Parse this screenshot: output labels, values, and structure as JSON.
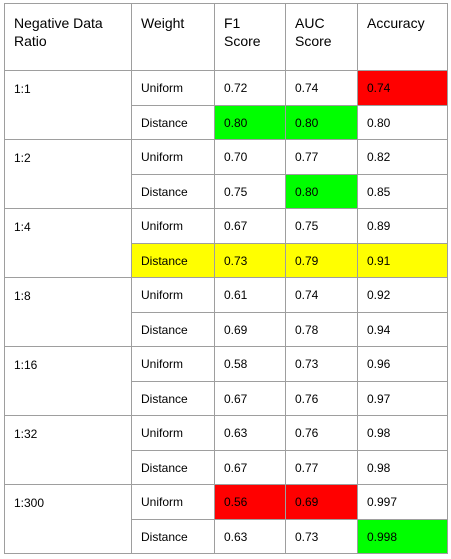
{
  "headers": [
    "Negative Data Ratio",
    "Weight",
    "F1 Score",
    "AUC Score",
    "Accuracy"
  ],
  "highlight_colors": {
    "red": "#ff0000",
    "green": "#00ff00",
    "yellow": "#ffff00"
  },
  "groups": [
    {
      "ratio": "1:1",
      "rows": [
        {
          "weight": "Uniform",
          "f1": "0.72",
          "auc": "0.74",
          "accuracy": "0.74",
          "highlights": {
            "accuracy": "red"
          }
        },
        {
          "weight": "Distance",
          "f1": "0.80",
          "auc": "0.80",
          "accuracy": "0.80",
          "highlights": {
            "f1": "green",
            "auc": "green"
          }
        }
      ]
    },
    {
      "ratio": "1:2",
      "rows": [
        {
          "weight": "Uniform",
          "f1": "0.70",
          "auc": "0.77",
          "accuracy": "0.82",
          "highlights": {}
        },
        {
          "weight": "Distance",
          "f1": "0.75",
          "auc": "0.80",
          "accuracy": "0.85",
          "highlights": {
            "auc": "green"
          }
        }
      ]
    },
    {
      "ratio": "1:4",
      "rows": [
        {
          "weight": "Uniform",
          "f1": "0.67",
          "auc": "0.75",
          "accuracy": "0.89",
          "highlights": {}
        },
        {
          "weight": "Distance",
          "f1": "0.73",
          "auc": "0.79",
          "accuracy": "0.91",
          "highlights": {
            "weight": "yellow",
            "f1": "yellow",
            "auc": "yellow",
            "accuracy": "yellow"
          }
        }
      ]
    },
    {
      "ratio": "1:8",
      "rows": [
        {
          "weight": "Uniform",
          "f1": "0.61",
          "auc": "0.74",
          "accuracy": "0.92",
          "highlights": {}
        },
        {
          "weight": "Distance",
          "f1": "0.69",
          "auc": "0.78",
          "accuracy": "0.94",
          "highlights": {}
        }
      ]
    },
    {
      "ratio": "1:16",
      "rows": [
        {
          "weight": "Uniform",
          "f1": "0.58",
          "auc": "0.73",
          "accuracy": "0.96",
          "highlights": {}
        },
        {
          "weight": "Distance",
          "f1": "0.67",
          "auc": "0.76",
          "accuracy": "0.97",
          "highlights": {}
        }
      ]
    },
    {
      "ratio": "1:32",
      "rows": [
        {
          "weight": "Uniform",
          "f1": "0.63",
          "auc": "0.76",
          "accuracy": "0.98",
          "highlights": {}
        },
        {
          "weight": "Distance",
          "f1": "0.67",
          "auc": "0.77",
          "accuracy": "0.98",
          "highlights": {}
        }
      ]
    },
    {
      "ratio": "1:300",
      "rows": [
        {
          "weight": "Uniform",
          "f1": "0.56",
          "auc": "0.69",
          "accuracy": "0.997",
          "highlights": {
            "f1": "red",
            "auc": "red"
          }
        },
        {
          "weight": "Distance",
          "f1": "0.63",
          "auc": "0.73",
          "accuracy": "0.998",
          "highlights": {
            "accuracy": "green"
          }
        }
      ]
    }
  ]
}
